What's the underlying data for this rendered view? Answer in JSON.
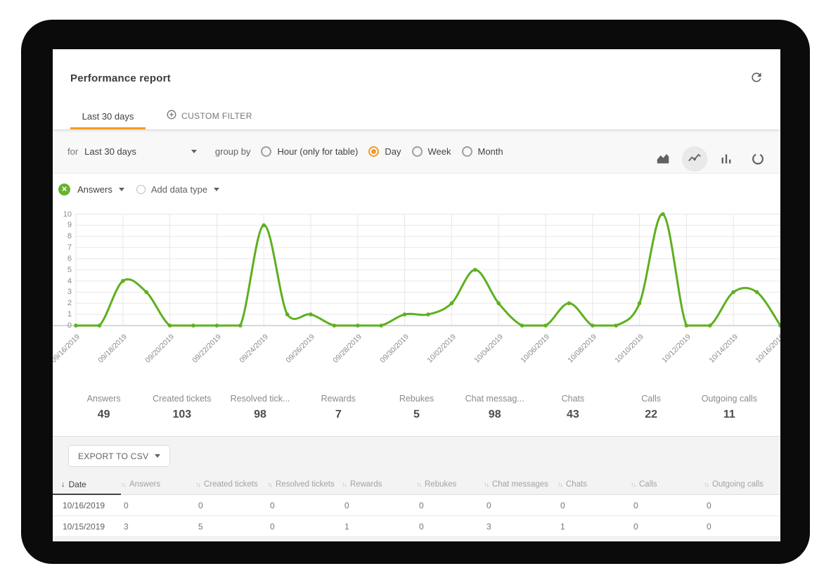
{
  "header": {
    "title": "Performance report"
  },
  "tabs": {
    "last30": "Last 30 days",
    "custom": "CUSTOM FILTER"
  },
  "filter": {
    "for_label": "for",
    "range_value": "Last 30 days",
    "group_by_label": "group by",
    "group_options": [
      {
        "label": "Hour (only for table)",
        "selected": false
      },
      {
        "label": "Day",
        "selected": true
      },
      {
        "label": "Week",
        "selected": false
      },
      {
        "label": "Month",
        "selected": false
      }
    ]
  },
  "chart_toolbar": {
    "icons": [
      "area-chart",
      "line-chart",
      "bar-chart",
      "donut-chart"
    ],
    "selected": "line-chart"
  },
  "series_selector": {
    "selected_type": "Answers",
    "add_label": "Add data type"
  },
  "chart_data": {
    "type": "line",
    "x": [
      "09/16/2019",
      "09/17/2019",
      "09/18/2019",
      "09/19/2019",
      "09/20/2019",
      "09/21/2019",
      "09/22/2019",
      "09/23/2019",
      "09/24/2019",
      "09/25/2019",
      "09/26/2019",
      "09/27/2019",
      "09/28/2019",
      "09/29/2019",
      "09/30/2019",
      "10/01/2019",
      "10/02/2019",
      "10/03/2019",
      "10/04/2019",
      "10/05/2019",
      "10/06/2019",
      "10/07/2019",
      "10/08/2019",
      "10/09/2019",
      "10/10/2019",
      "10/11/2019",
      "10/12/2019",
      "10/13/2019",
      "10/14/2019",
      "10/15/2019",
      "10/16/2019"
    ],
    "series": [
      {
        "name": "Answers",
        "color": "#5db01e",
        "values": [
          0,
          0,
          4,
          3,
          0,
          0,
          0,
          0,
          9,
          1,
          1,
          0,
          0,
          0,
          1,
          1,
          2,
          5,
          2,
          0,
          0,
          2,
          0,
          0,
          2,
          10,
          0,
          0,
          3,
          3,
          0
        ]
      }
    ],
    "ylim": [
      0,
      10
    ],
    "yticks": [
      0,
      1,
      2,
      3,
      4,
      5,
      6,
      7,
      8,
      9,
      10
    ],
    "x_label_every": 2,
    "grid": true,
    "legend_position": "none"
  },
  "stats": [
    {
      "label": "Answers",
      "value": "49"
    },
    {
      "label": "Created tickets",
      "value": "103"
    },
    {
      "label": "Resolved tick...",
      "value": "98"
    },
    {
      "label": "Rewards",
      "value": "7"
    },
    {
      "label": "Rebukes",
      "value": "5"
    },
    {
      "label": "Chat messag...",
      "value": "98"
    },
    {
      "label": "Chats",
      "value": "43"
    },
    {
      "label": "Calls",
      "value": "22"
    },
    {
      "label": "Outgoing calls",
      "value": "11"
    }
  ],
  "export_button": {
    "label": "EXPORT TO CSV"
  },
  "table": {
    "sort": {
      "column": "Date",
      "direction": "desc"
    },
    "columns": [
      "Date",
      "Answers",
      "Created tickets",
      "Resolved tickets",
      "Rewards",
      "Rebukes",
      "Chat messages",
      "Chats",
      "Calls",
      "Outgoing calls"
    ],
    "rows": [
      [
        "10/16/2019",
        "0",
        "0",
        "0",
        "0",
        "0",
        "0",
        "0",
        "0",
        "0"
      ],
      [
        "10/15/2019",
        "3",
        "5",
        "0",
        "1",
        "0",
        "3",
        "1",
        "0",
        "0"
      ]
    ]
  },
  "colors": {
    "accent_orange": "#f59b23",
    "line_green": "#5db01e",
    "frame_black": "#0b0b0b"
  }
}
